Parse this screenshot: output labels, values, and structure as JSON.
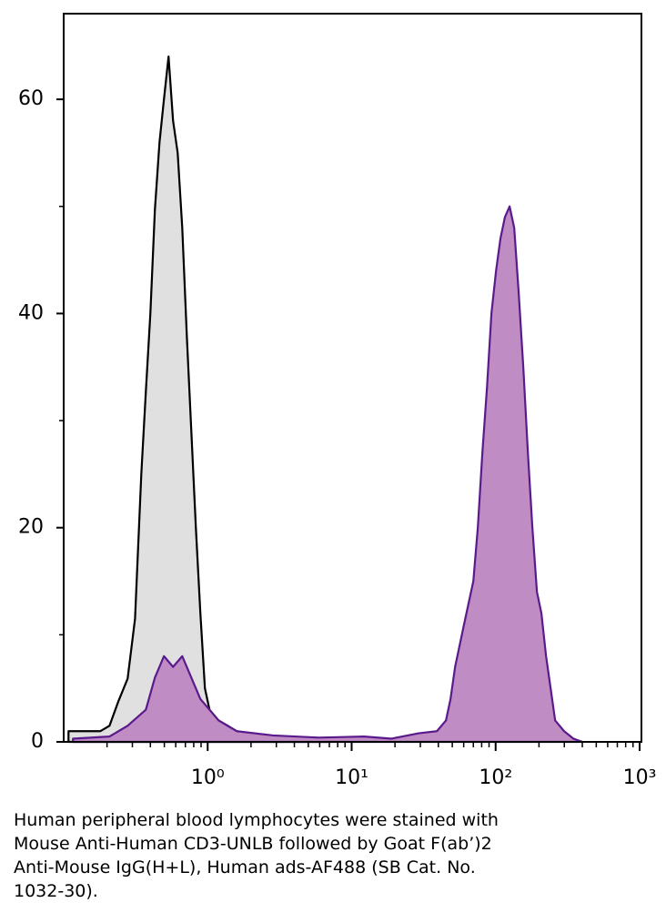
{
  "chart_data": {
    "type": "area",
    "xscale": "log",
    "xlim": [
      0.1,
      1000
    ],
    "ylim": [
      0,
      68
    ],
    "xticks": [
      {
        "value": 1,
        "label": "10⁰"
      },
      {
        "value": 10,
        "label": "10¹"
      },
      {
        "value": 100,
        "label": "10²"
      },
      {
        "value": 1000,
        "label": "10³"
      }
    ],
    "xminor": [
      0.2,
      0.3,
      0.4,
      0.5,
      0.6,
      0.7,
      0.8,
      0.9,
      2,
      3,
      4,
      5,
      6,
      7,
      8,
      9,
      20,
      30,
      40,
      50,
      60,
      70,
      80,
      90,
      200,
      300,
      400,
      500,
      600,
      700,
      800,
      900
    ],
    "yticks": [
      0,
      20,
      40,
      60
    ],
    "yminor": [
      10,
      30,
      50
    ],
    "series": [
      {
        "color": "#000000",
        "fill": "#e0e0e0",
        "x": [
          0.108,
          0.134,
          0.155,
          0.18,
          0.208,
          0.24,
          0.278,
          0.313,
          0.346,
          0.372,
          0.4,
          0.43,
          0.463,
          0.497,
          0.535,
          0.575,
          0.619,
          0.666,
          0.716,
          0.77,
          0.828,
          0.89,
          0.957,
          1.03,
          1.19,
          1.38,
          1.59,
          2.13,
          2.85,
          4.41,
          6.82
        ],
        "values": [
          1,
          1,
          1,
          1,
          1.5,
          3.8,
          5.9,
          11.5,
          25,
          32.7,
          40,
          49.7,
          56,
          60,
          64,
          58,
          55,
          48,
          38,
          29,
          20,
          12,
          5,
          3,
          2,
          1.5,
          1,
          0.5,
          0.3,
          0.1,
          0
        ]
      },
      {
        "color": "#5b1a8c",
        "fill": "#c08cc4",
        "x": [
          0.116,
          0.208,
          0.278,
          0.372,
          0.43,
          0.497,
          0.575,
          0.666,
          0.77,
          0.89,
          1.03,
          1.19,
          1.59,
          2.85,
          5.9,
          12.2,
          18.9,
          29.2,
          39.1,
          45.2,
          48.6,
          52.3,
          60.4,
          70,
          75.2,
          80.9,
          87,
          93.5,
          100.7,
          108,
          116,
          125,
          134.6,
          144.5,
          155.6,
          167.5,
          180,
          193.6,
          208,
          224,
          241,
          259,
          299,
          347,
          401
        ],
        "values": [
          0.3,
          0.5,
          1.5,
          3,
          6,
          8,
          7,
          8,
          6,
          4,
          3,
          2,
          1,
          0.6,
          0.4,
          0.5,
          0.3,
          0.8,
          1,
          2,
          4,
          7,
          11,
          15,
          20,
          27,
          33,
          40,
          44,
          47,
          49,
          50,
          48,
          42,
          35,
          27,
          20,
          14,
          12,
          8,
          5,
          2,
          1,
          0.3,
          0
        ]
      }
    ],
    "caption": [
      "Human peripheral blood lymphocytes were stained with",
      "Mouse Anti-Human CD3-UNLB followed by Goat F(ab’)2",
      "Anti-Mouse IgG(H+L), Human ads-AF488 (SB Cat. No.",
      "1032-30)."
    ]
  }
}
